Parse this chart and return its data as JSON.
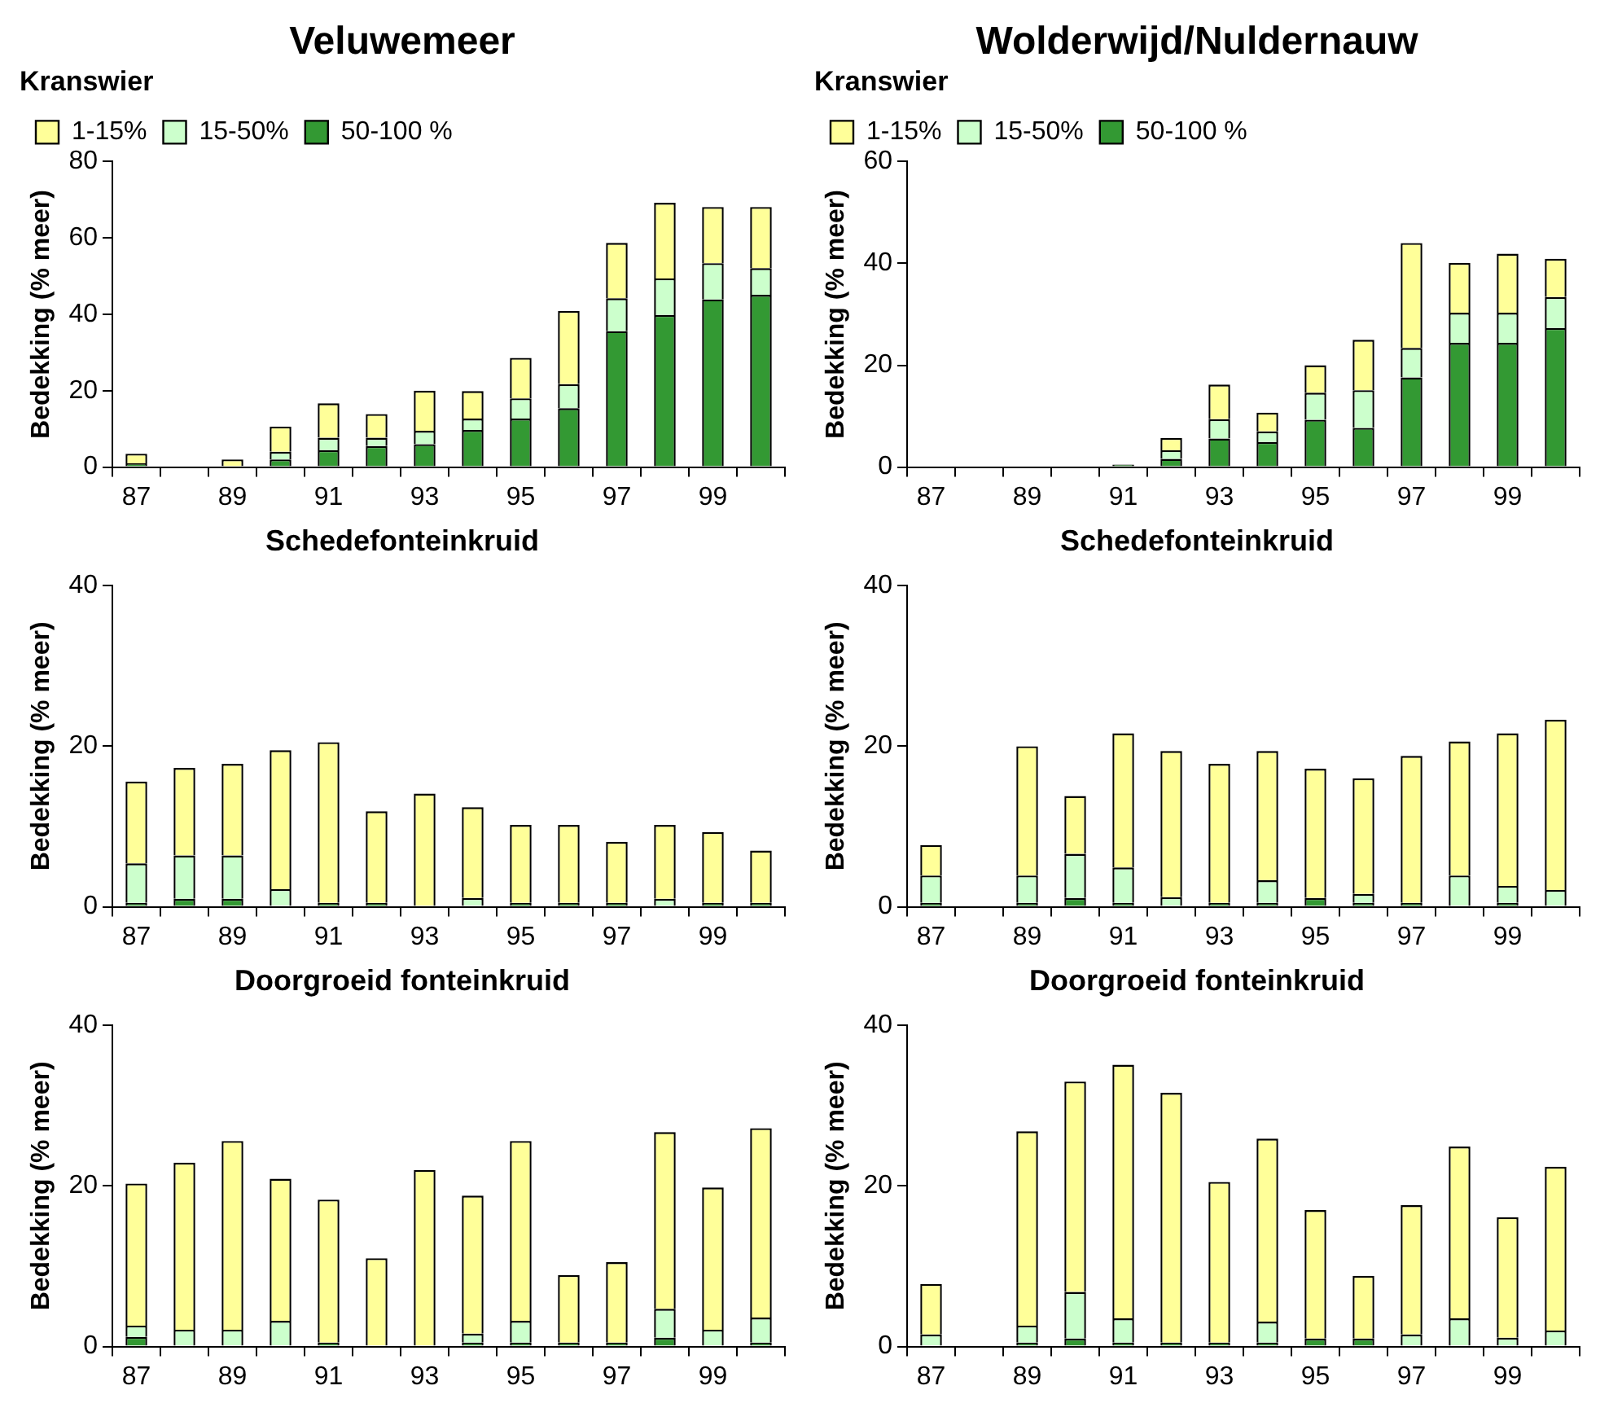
{
  "chart_data": [
    {
      "type": "bar",
      "title": "Veluwemeer",
      "subtitle": "Kranswier",
      "ylabel": "Bedekking (% meer)",
      "categories": [
        "87",
        null,
        "89",
        null,
        "91",
        null,
        "93",
        null,
        "95",
        null,
        "97",
        null,
        "99",
        null
      ],
      "stacked": true,
      "ylim": [
        0,
        80
      ],
      "yticks": [
        0,
        20,
        40,
        60,
        80
      ],
      "grid": false,
      "legend": "top left",
      "series": [
        {
          "name": "50-100 %",
          "color": "#339933",
          "values": [
            1,
            0,
            0,
            2,
            4.4,
            5.5,
            6,
            9.7,
            12.7,
            15.4,
            35.6,
            39.8,
            43.9,
            45.1
          ]
        },
        {
          "name": "15-50%",
          "color": "#ccffcc",
          "values": [
            0,
            0,
            0,
            2,
            3.3,
            2.2,
            3.5,
            3,
            5.3,
            6.3,
            8.6,
            9.6,
            9.5,
            7
          ]
        },
        {
          "name": "1-15%",
          "color": "#ffff99",
          "values": [
            2.5,
            0,
            2,
            6.6,
            9,
            6.2,
            10.5,
            7.2,
            10.6,
            19.2,
            14.5,
            19.8,
            14.7,
            16
          ]
        }
      ]
    },
    {
      "type": "bar",
      "title": "Wolderwijd/Nuldernauw",
      "subtitle": "Kranswier",
      "ylabel": "Bedekking (% meer)",
      "categories": [
        "87",
        null,
        "89",
        null,
        "91",
        null,
        "93",
        null,
        "95",
        null,
        "97",
        null,
        "99",
        null
      ],
      "stacked": true,
      "ylim": [
        0,
        60
      ],
      "yticks": [
        0,
        20,
        40,
        60
      ],
      "grid": false,
      "legend": "top left",
      "series": [
        {
          "name": "50-100 %",
          "color": "#339933",
          "values": [
            0,
            0,
            0,
            0,
            0.5,
            1.6,
            5.6,
            4.9,
            9.3,
            7.7,
            17.6,
            24.4,
            24.4,
            27.3
          ]
        },
        {
          "name": "15-50%",
          "color": "#ccffcc",
          "values": [
            0,
            0,
            0,
            0,
            null,
            1.7,
            3.8,
            2.1,
            5.3,
            7.4,
            5.8,
            5.9,
            5.9,
            6.1
          ]
        },
        {
          "name": "1-15%",
          "color": "#ffff99",
          "values": [
            0,
            0,
            0,
            0,
            null,
            2.4,
            6.8,
            3.7,
            5.4,
            9.9,
            20.6,
            9.8,
            11.6,
            7.5
          ]
        }
      ]
    },
    {
      "type": "bar",
      "title": "Schedefonteinkruid",
      "ylabel": "Bedekking (% meer)",
      "categories": [
        "87",
        null,
        "89",
        null,
        "91",
        null,
        "93",
        null,
        "95",
        null,
        "97",
        null,
        "99",
        null
      ],
      "stacked": true,
      "ylim": [
        0,
        40
      ],
      "yticks": [
        0,
        20,
        40
      ],
      "grid": false,
      "series": [
        {
          "color": "#339933",
          "values": [
            0.5,
            1,
            1,
            0,
            0.5,
            0.5,
            0,
            0,
            0.5,
            0.5,
            0.5,
            0,
            0.5,
            0.5
          ]
        },
        {
          "color": "#ccffcc",
          "values": [
            4.9,
            5.4,
            5.4,
            2.2,
            0,
            0,
            0,
            1.1,
            0,
            0,
            0,
            1,
            0,
            0
          ]
        },
        {
          "color": "#ffff99",
          "values": [
            10.2,
            10.9,
            11.4,
            17.3,
            20,
            11.4,
            14.1,
            11.3,
            9.7,
            9.7,
            7.6,
            9.2,
            8.8,
            6.5
          ]
        }
      ]
    },
    {
      "type": "bar",
      "title": "Schedefonteinkruid",
      "ylabel": "Bedekking (% meer)",
      "categories": [
        "87",
        null,
        "89",
        null,
        "91",
        null,
        "93",
        null,
        "95",
        null,
        "97",
        null,
        "99",
        null
      ],
      "stacked": true,
      "ylim": [
        0,
        40
      ],
      "yticks": [
        0,
        20,
        40
      ],
      "grid": false,
      "series": [
        {
          "color": "#339933",
          "values": [
            0.5,
            0,
            0.5,
            1.1,
            0.5,
            0,
            0.5,
            0.5,
            1.1,
            0.5,
            0.5,
            0,
            0.5,
            0
          ]
        },
        {
          "color": "#ccffcc",
          "values": [
            3.4,
            0,
            3.4,
            5.5,
            4.4,
            1.2,
            0,
            2.8,
            0,
            1.1,
            0,
            3.9,
            2.1,
            2.1
          ]
        },
        {
          "color": "#ffff99",
          "values": [
            3.8,
            0,
            16.1,
            7.2,
            16.7,
            18.2,
            17.3,
            16.1,
            16.1,
            14.4,
            18.3,
            16.7,
            19,
            21.2
          ]
        }
      ]
    },
    {
      "type": "bar",
      "title": "Doorgroeid fonteinkruid",
      "ylabel": "Bedekking (% meer)",
      "categories": [
        "87",
        null,
        "89",
        null,
        "91",
        null,
        "93",
        null,
        "95",
        null,
        "97",
        null,
        "99",
        null
      ],
      "stacked": true,
      "ylim": [
        0,
        40
      ],
      "yticks": [
        0,
        20,
        40
      ],
      "grid": false,
      "series": [
        {
          "color": "#339933",
          "values": [
            1.2,
            0,
            0,
            0,
            0.5,
            0,
            0,
            0.5,
            0.5,
            0.5,
            0.5,
            1.1,
            0,
            0.5
          ]
        },
        {
          "color": "#ccffcc",
          "values": [
            1.4,
            2.1,
            2.1,
            3.2,
            0,
            0,
            0,
            1.1,
            2.7,
            0,
            0,
            3.6,
            2.1,
            3.1
          ]
        },
        {
          "color": "#ffff99",
          "values": [
            17.7,
            20.8,
            23.5,
            17.7,
            17.8,
            11,
            22,
            17.2,
            22.4,
            8.4,
            10,
            22,
            17.7,
            23.6
          ]
        }
      ]
    },
    {
      "type": "bar",
      "title": "Doorgroeid fonteinkruid",
      "ylabel": "Bedekking (% meer)",
      "categories": [
        "87",
        null,
        "89",
        null,
        "91",
        null,
        "93",
        null,
        "95",
        null,
        "97",
        null,
        "99",
        null
      ],
      "stacked": true,
      "ylim": [
        0,
        40
      ],
      "yticks": [
        0,
        20,
        40
      ],
      "grid": false,
      "series": [
        {
          "color": "#339933",
          "values": [
            0,
            0,
            0.5,
            1,
            0.5,
            0.5,
            0.5,
            0.5,
            1,
            1,
            0,
            0,
            0,
            0
          ]
        },
        {
          "color": "#ccffcc",
          "values": [
            1.5,
            0,
            2.1,
            5.8,
            3,
            0,
            0,
            2.6,
            0,
            0,
            1.5,
            3.5,
            1.1,
            2
          ]
        },
        {
          "color": "#ffff99",
          "values": [
            6.3,
            0,
            24.2,
            26.2,
            31.6,
            31.1,
            20,
            22.8,
            16,
            7.8,
            16.1,
            21.4,
            15,
            20.4
          ]
        }
      ]
    }
  ]
}
